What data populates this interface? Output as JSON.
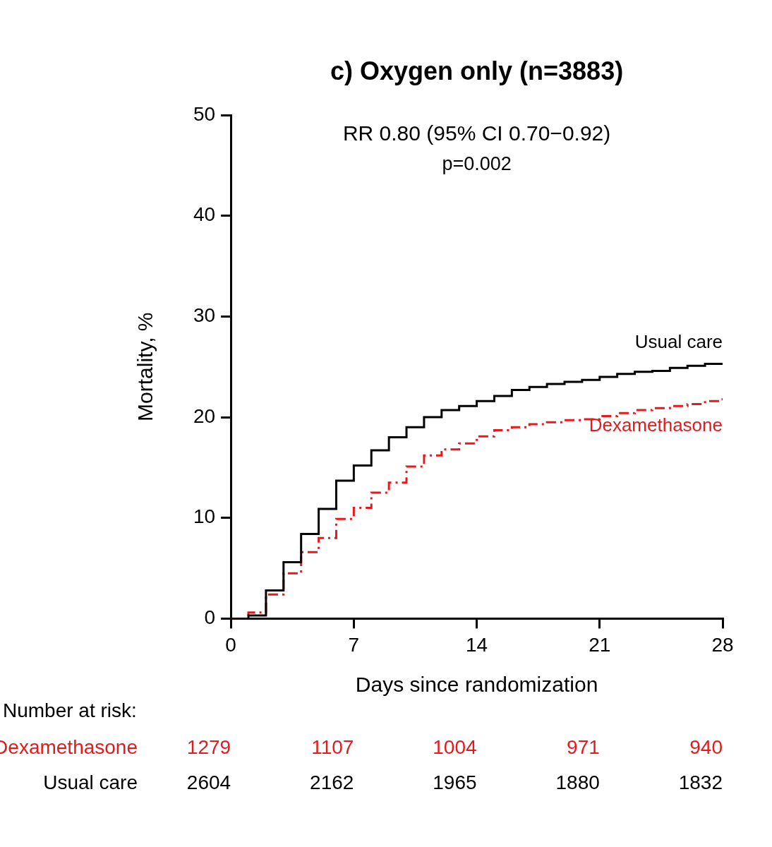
{
  "chart_data": {
    "type": "line",
    "title": "c) Oxygen only (n=3883)",
    "annotations": [
      "RR 0.80 (95% CI 0.70−0.92)",
      "p=0.002"
    ],
    "x_label": "Days since randomization",
    "y_label": "Mortality, %",
    "x": [
      0,
      1,
      2,
      3,
      4,
      5,
      6,
      7,
      8,
      9,
      10,
      11,
      12,
      13,
      14,
      15,
      16,
      17,
      18,
      19,
      20,
      21,
      22,
      23,
      24,
      25,
      26,
      27,
      28
    ],
    "xlim": [
      0,
      28
    ],
    "xticks": [
      0,
      7,
      14,
      21,
      28
    ],
    "ylim": [
      0,
      50
    ],
    "yticks": [
      0,
      10,
      20,
      30,
      40,
      50
    ],
    "grid": false,
    "at_risk_title": "Number at risk:",
    "at_risk_x": [
      0,
      7,
      14,
      21,
      28
    ],
    "series": [
      {
        "name": "Usual care",
        "color": "#000000",
        "line_style": "solid",
        "values": [
          0,
          0.3,
          2.8,
          5.6,
          8.4,
          10.9,
          13.7,
          15.2,
          16.7,
          18.0,
          19.0,
          20.0,
          20.7,
          21.1,
          21.6,
          22.1,
          22.7,
          23.0,
          23.3,
          23.5,
          23.7,
          24.0,
          24.3,
          24.5,
          24.6,
          24.9,
          25.1,
          25.3,
          25.4
        ],
        "at_risk": [
          2604,
          2162,
          1965,
          1880,
          1832
        ]
      },
      {
        "name": "Dexamethasone",
        "color": "#e41a1c",
        "line_style": "dash-dot",
        "values": [
          0,
          0.6,
          2.4,
          4.5,
          6.6,
          8.0,
          9.9,
          11.0,
          12.5,
          13.5,
          15.1,
          16.2,
          16.8,
          17.4,
          18.1,
          18.7,
          19.0,
          19.3,
          19.5,
          19.7,
          19.8,
          20.1,
          20.4,
          20.7,
          20.9,
          21.1,
          21.3,
          21.6,
          21.9
        ],
        "at_risk": [
          1279,
          1107,
          1004,
          971,
          940
        ]
      }
    ]
  }
}
